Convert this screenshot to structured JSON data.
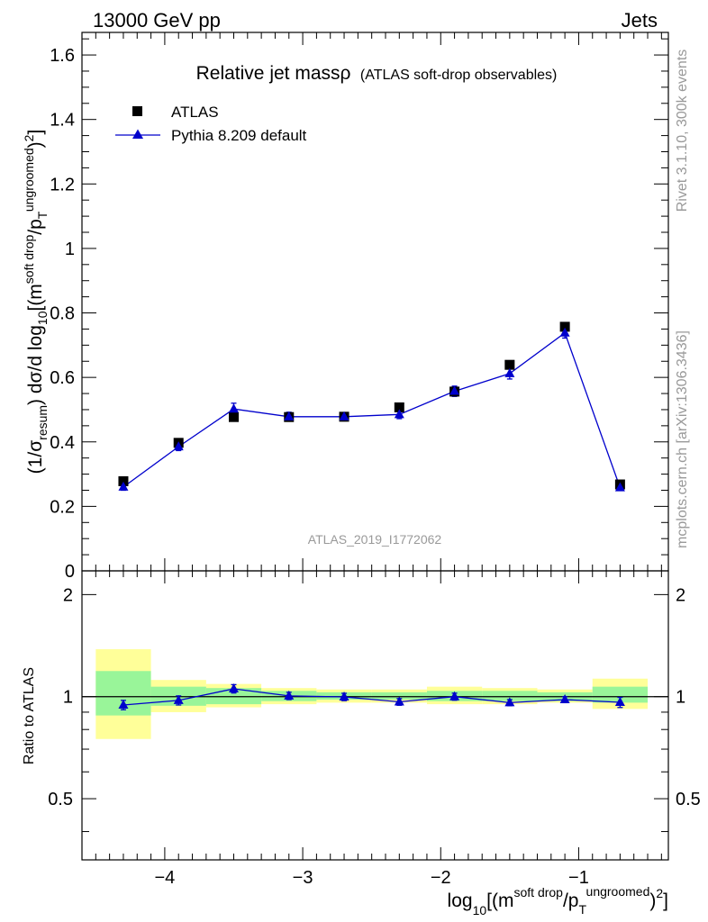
{
  "header": {
    "left": "13000 GeV pp",
    "right": "Jets"
  },
  "side_labels": {
    "rivet": "Rivet 3.1.10,  300k events",
    "mcplots": "mcplots.cern.ch [arXiv:1306.3436]"
  },
  "chart_data": {
    "type": "scatter",
    "title": "Relative jet massρ",
    "subtitle": "(ATLAS soft-drop observables)",
    "watermark": "ATLAS_2019_I1772062",
    "xlim": [
      -4.6,
      -0.35
    ],
    "x_ticks": [
      -4,
      -3,
      -2,
      -1
    ],
    "x_tick_labels": [
      "−4",
      "−3",
      "−2",
      "−1"
    ],
    "xlabel": {
      "base": "log",
      "sub": "10",
      "open": "[(m",
      "sup1": "soft drop",
      "mid": "/p",
      "sub2": "T",
      "sup2": "ungroomed",
      "close": ")",
      "sup3": "2",
      "end": "]"
    },
    "ylabel": {
      "open": "(1/σ",
      "sub1": "resum",
      "mid": ") dσ/d log",
      "sub2": "10",
      "bracket": "[(m",
      "sup1": "soft drop",
      "slash": "/p",
      "sub3": "T",
      "sup2": "ungroomed",
      "close": ")",
      "sup3": "2",
      "end": "]"
    },
    "main_ylim": [
      0,
      1.67
    ],
    "main_y_ticks": [
      0,
      0.2,
      0.4,
      0.6,
      0.8,
      1,
      1.2,
      1.4,
      1.6
    ],
    "main_y_tick_labels": [
      "0",
      "0.2",
      "0.4",
      "0.6",
      "0.8",
      "1",
      "1.2",
      "1.4",
      "1.6"
    ],
    "bin_edges": [
      -4.5,
      -4.1,
      -3.7,
      -3.3,
      -2.9,
      -2.5,
      -2.1,
      -1.7,
      -1.3,
      -0.9,
      -0.5
    ],
    "x": [
      -4.3,
      -3.9,
      -3.5,
      -3.1,
      -2.7,
      -2.3,
      -1.9,
      -1.5,
      -1.1,
      -0.7
    ],
    "legend": {
      "position": "top-left"
    },
    "series": [
      {
        "name": "ATLAS",
        "marker": "square",
        "color": "#000000",
        "values": [
          0.278,
          0.397,
          0.477,
          0.477,
          0.478,
          0.507,
          0.556,
          0.639,
          0.757,
          0.268
        ]
      },
      {
        "name": "Pythia 8.209 default",
        "marker": "triangle",
        "color": "#0000cc",
        "values": [
          0.26,
          0.385,
          0.502,
          0.478,
          0.478,
          0.485,
          0.557,
          0.612,
          0.738,
          0.258
        ],
        "errors": [
          0.01,
          0.012,
          0.018,
          0.014,
          0.013,
          0.013,
          0.016,
          0.017,
          0.016,
          0.008
        ]
      }
    ],
    "ratio": {
      "ylabel": "Ratio to ATLAS",
      "ylim": [
        0.33,
        2.35
      ],
      "y_ticks": [
        0.5,
        1,
        2
      ],
      "y_tick_labels": [
        "0.5",
        "1",
        "2"
      ],
      "green_band": [
        [
          0.88,
          1.19
        ],
        [
          0.94,
          1.07
        ],
        [
          0.95,
          1.06
        ],
        [
          0.97,
          1.04
        ],
        [
          0.98,
          1.03
        ],
        [
          0.98,
          1.03
        ],
        [
          0.97,
          1.04
        ],
        [
          0.97,
          1.04
        ],
        [
          0.97,
          1.03
        ],
        [
          0.96,
          1.07
        ]
      ],
      "yellow_band": [
        [
          0.75,
          1.38
        ],
        [
          0.9,
          1.12
        ],
        [
          0.93,
          1.09
        ],
        [
          0.95,
          1.06
        ],
        [
          0.96,
          1.05
        ],
        [
          0.96,
          1.05
        ],
        [
          0.95,
          1.07
        ],
        [
          0.95,
          1.06
        ],
        [
          0.96,
          1.05
        ],
        [
          0.92,
          1.13
        ]
      ],
      "values": [
        0.945,
        0.975,
        1.055,
        1.005,
        0.998,
        0.965,
        1.0,
        0.96,
        0.98,
        0.962
      ],
      "errors": [
        0.03,
        0.03,
        0.03,
        0.025,
        0.025,
        0.022,
        0.024,
        0.02,
        0.02,
        0.033
      ],
      "colors": {
        "green": "#99f599",
        "yellow": "#ffff99",
        "line": "#0000cc"
      }
    }
  }
}
